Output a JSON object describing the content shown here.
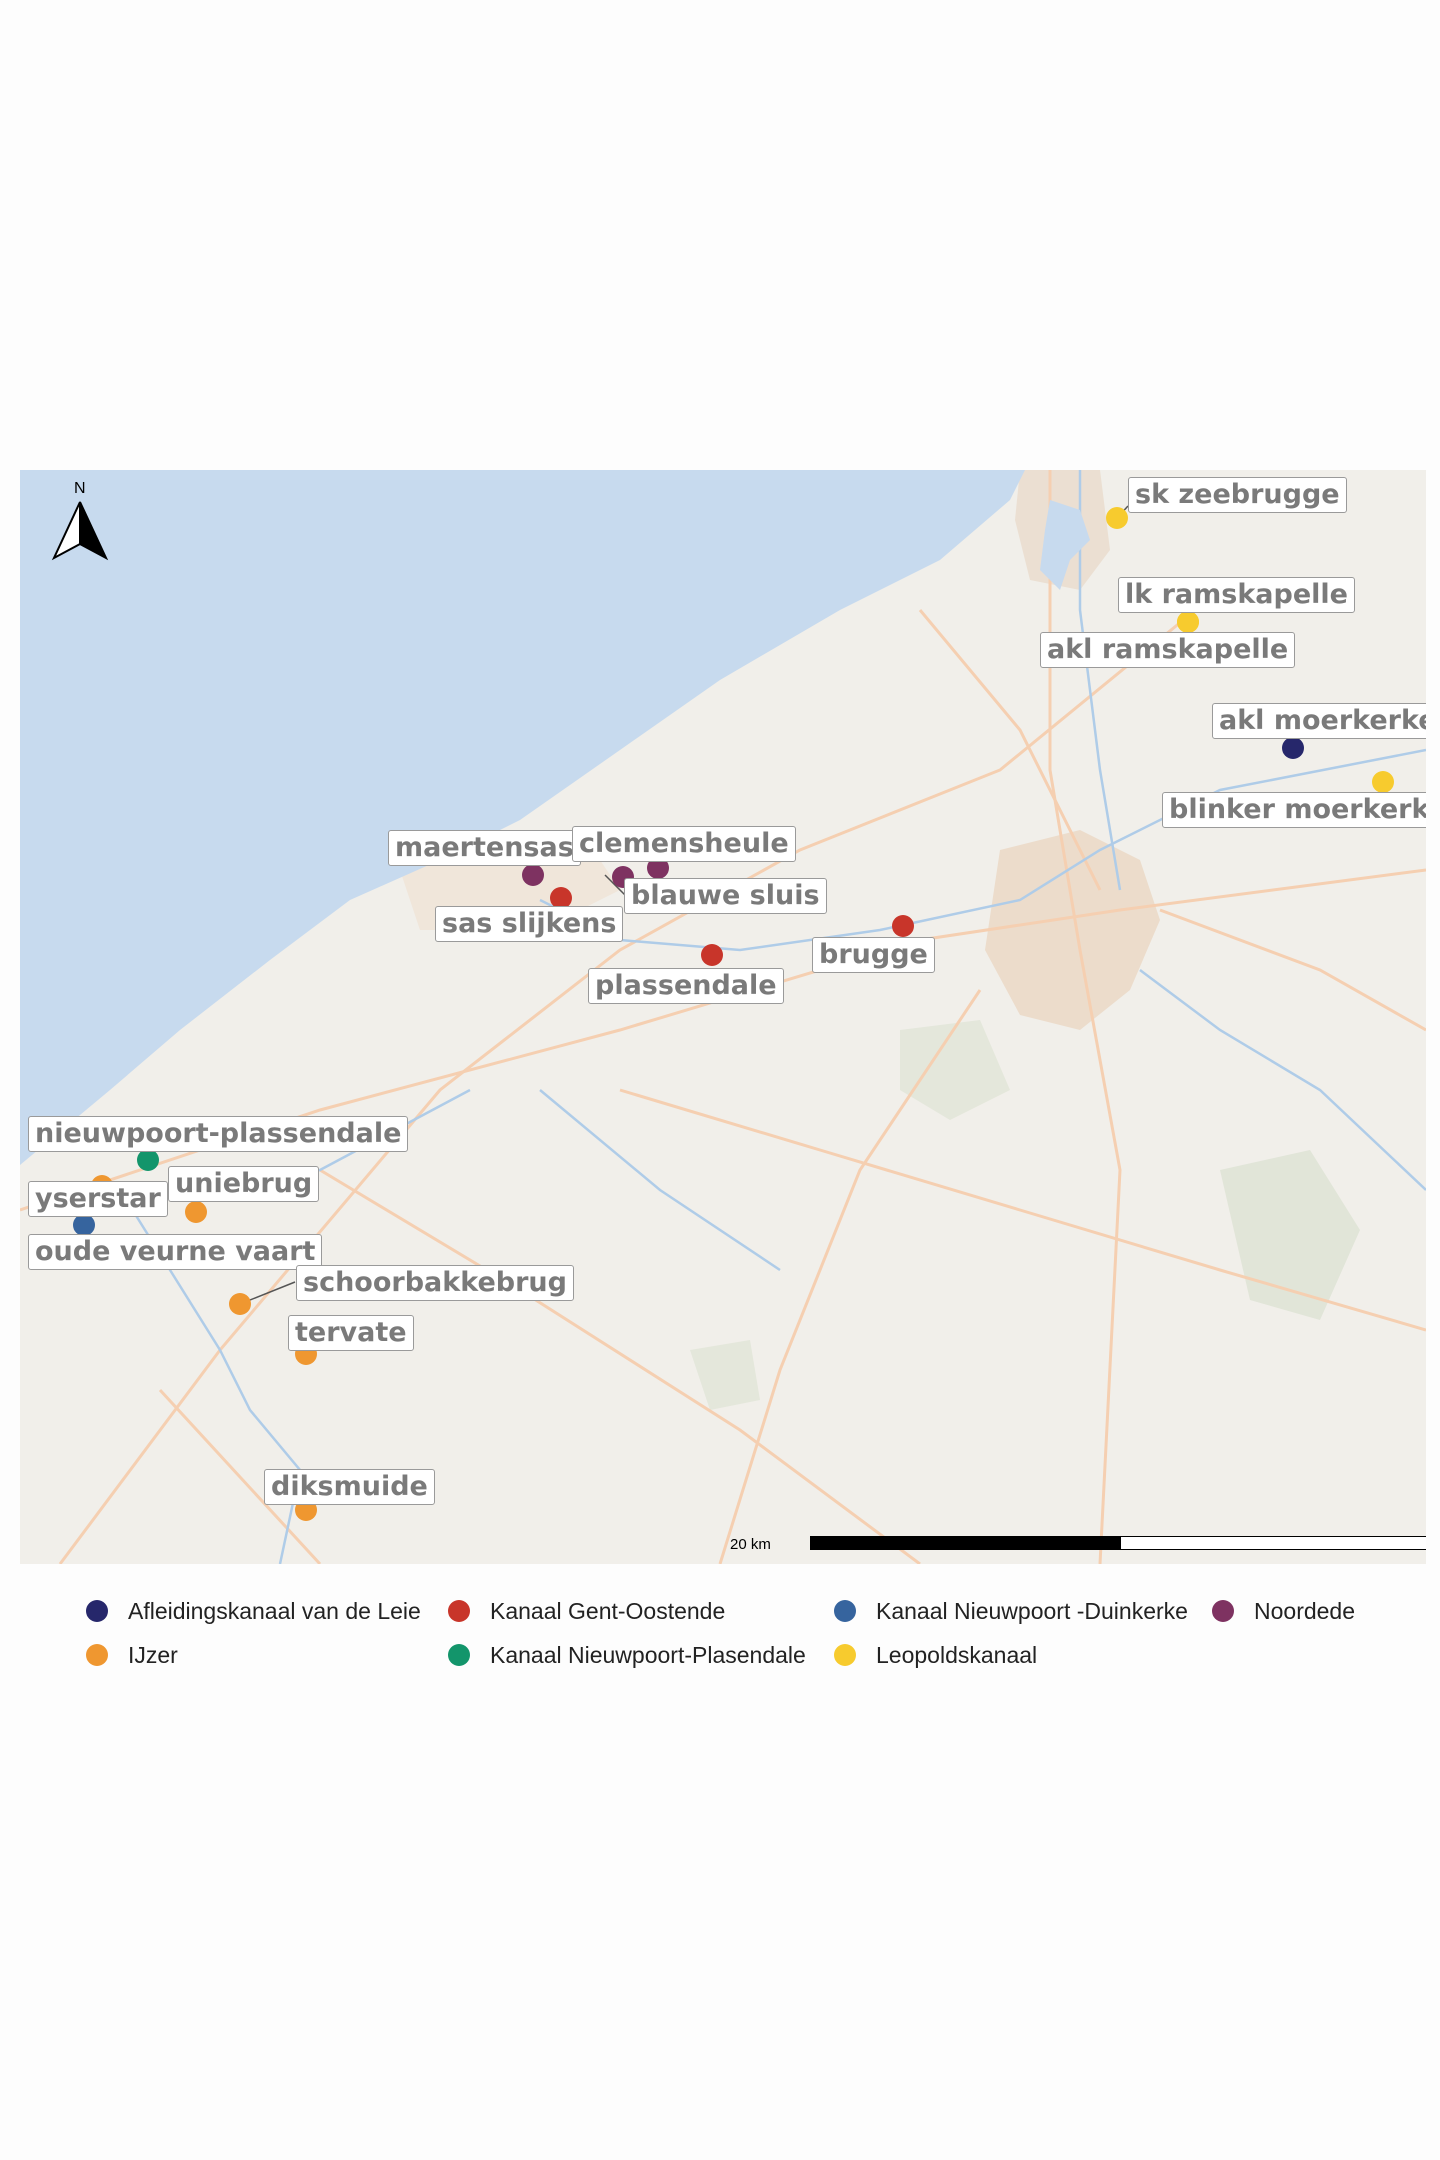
{
  "north_arrow": {
    "label": "N"
  },
  "scale_bar": {
    "label": "20 km"
  },
  "colors": {
    "sea": "#c6d9ee",
    "land": "#f1efea",
    "urban": "#ead8c6",
    "road": "#f4c9a8",
    "water_line": "#a9c7e6",
    "green": "#dde3d4"
  },
  "legend": [
    {
      "label": "Afleidingskanaal van de Leie",
      "color": "#26276b"
    },
    {
      "label": "Kanaal Gent-Oostende",
      "color": "#c8352a"
    },
    {
      "label": "Kanaal Nieuwpoort -Duinkerke",
      "color": "#36649e"
    },
    {
      "label": "Noordede",
      "color": "#7e3261"
    },
    {
      "label": "IJzer",
      "color": "#ef9730"
    },
    {
      "label": "Kanaal Nieuwpoort-Plasendale",
      "color": "#13956b"
    },
    {
      "label": "Leopoldskanaal",
      "color": "#f7cb2e"
    }
  ],
  "stations": [
    {
      "label": "sk zeebrugge",
      "color": "#f7cb2e"
    },
    {
      "label": "lk ramskapelle",
      "color": "#f7cb2e"
    },
    {
      "label": "akl ramskapelle",
      "color": "#f7cb2e"
    },
    {
      "label": "akl moerkerke",
      "color": "#26276b"
    },
    {
      "label": "blinker moerkerke",
      "color": "#f7cb2e"
    },
    {
      "label": "maertensas",
      "color": "#7e3261"
    },
    {
      "label": "clemensheule",
      "color": "#7e3261"
    },
    {
      "label": "blauwe sluis",
      "color": "#7e3261"
    },
    {
      "label": "sas slijkens",
      "color": "#c8352a"
    },
    {
      "label": "brugge",
      "color": "#c8352a"
    },
    {
      "label": "plassendale",
      "color": "#c8352a"
    },
    {
      "label": "nieuwpoort-plassendale",
      "color": "#13956b"
    },
    {
      "label": "uniebrug",
      "color": "#ef9730"
    },
    {
      "label": "yserstar",
      "color": "#ef9730"
    },
    {
      "label": "oude veurne vaart",
      "color": "#36649e"
    },
    {
      "label": "schoorbakkebrug",
      "color": "#ef9730"
    },
    {
      "label": "tervate",
      "color": "#ef9730"
    },
    {
      "label": "diksmuide",
      "color": "#ef9730"
    }
  ]
}
